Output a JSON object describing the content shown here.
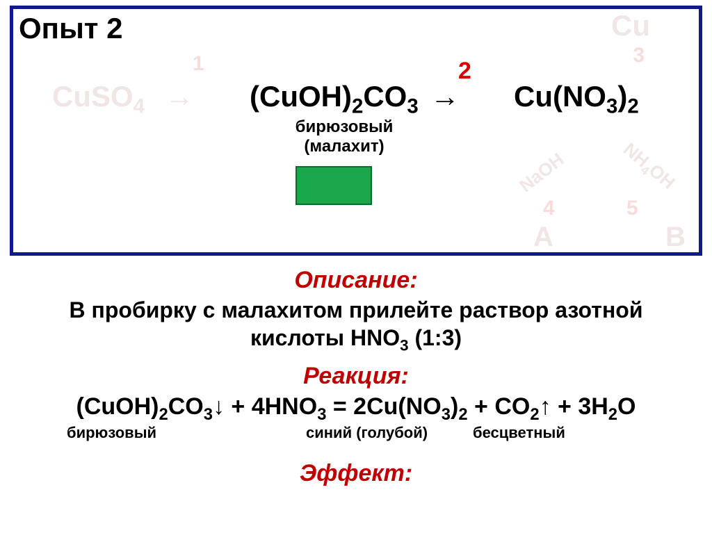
{
  "title": "Опыт 2",
  "faded": {
    "cu": "Cu",
    "n1": "1",
    "n3": "3",
    "cuso4_html": "CuSO<sub>4</sub>",
    "arrow1": "→",
    "naoh": "NaOH",
    "nh4oh_html": "NH<sub>4</sub>OH",
    "n4": "4",
    "n5": "5",
    "A": "А",
    "B": "В"
  },
  "reaction_box": {
    "cuoh_html": "(CuOH)<sub>2</sub>CO<sub>3</sub>",
    "arrow_num": "2",
    "arrow2": "→",
    "cuno3_html": "Cu(NO<sub>3</sub>)<sub>2</sub>",
    "malachite_line1": "бирюзовый",
    "malachite_line2": "(малахит)",
    "swatch_color": "#1aa84a"
  },
  "description": {
    "heading": "Описание:",
    "text_html": "В пробирку с малахитом прилейте раствор азотной кислоты HNO<sub>3</sub> (1:3)"
  },
  "reaction": {
    "heading": "Реакция:",
    "equation_html": "(CuOH)<sub>2</sub>CO<sub>3</sub>↓ + 4HNO<sub>3</sub> = 2Cu(NO<sub>3</sub>)<sub>2</sub> + CO<sub>2</sub>↑ + 3H<sub>2</sub>O",
    "color1": "бирюзовый",
    "color2": "синий (голубой)",
    "color3": "бесцветный"
  },
  "effect": {
    "heading": "Эффект:"
  },
  "colors": {
    "title_red": "#c00000",
    "arrow_red": "#d80000",
    "border_blue": "#0f1b8a",
    "faded_pink": "#f0e6e6"
  }
}
